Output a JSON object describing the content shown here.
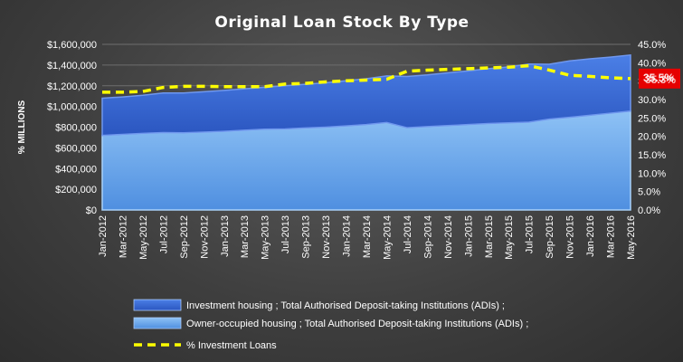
{
  "chart_data": {
    "type": "area",
    "title": "Original  Loan Stock By Type",
    "ylabel": "% MILLIONS",
    "y_left": {
      "ylim": [
        0,
        1600000
      ],
      "step": 200000,
      "tick_labels": [
        "$0",
        "$200,000",
        "$400,000",
        "$600,000",
        "$800,000",
        "$1,000,000",
        "$1,200,000",
        "$1,400,000",
        "$1,600,000"
      ]
    },
    "y_right": {
      "ylim": [
        0,
        45
      ],
      "step": 5,
      "tick_labels": [
        "0.0%",
        "5.0%",
        "10.0%",
        "15.0%",
        "20.0%",
        "25.0%",
        "30.0%",
        "35.0%",
        "40.0%",
        "45.0%"
      ]
    },
    "x_labels": [
      "Jan-2012",
      "Mar-2012",
      "May-2012",
      "Jul-2012",
      "Sep-2012",
      "Nov-2012",
      "Jan-2013",
      "Mar-2013",
      "May-2013",
      "Jul-2013",
      "Sep-2013",
      "Nov-2013",
      "Jan-2014",
      "Mar-2014",
      "May-2014",
      "Jul-2014",
      "Sep-2014",
      "Nov-2014",
      "Jan-2015",
      "Mar-2015",
      "May-2015",
      "Jul-2015",
      "Sep-2015",
      "Nov-2015",
      "Jan-2016",
      "Mar-2016",
      "May-2016"
    ],
    "grid": true,
    "legend_position": "bottom",
    "series": [
      {
        "name": "Owner-occupied housing ;  Total Authorised Deposit-taking Institutions (ADIs) ;",
        "kind": "area",
        "stacked": true,
        "axis": "left",
        "color": "#6fa8ec",
        "values": [
          720000,
          730000,
          740000,
          748000,
          745000,
          752000,
          760000,
          770000,
          780000,
          782000,
          792000,
          800000,
          812000,
          825000,
          845000,
          795000,
          805000,
          815000,
          825000,
          835000,
          842000,
          848000,
          878000,
          895000,
          915000,
          935000,
          955000
        ]
      },
      {
        "name": "Investment housing ;  Total Authorised Deposit-taking Institutions (ADIs) ;",
        "kind": "area",
        "stacked": true,
        "axis": "left",
        "color": "#3c6ad6",
        "values": [
          360000,
          362000,
          368000,
          382000,
          385000,
          390000,
          395000,
          400000,
          406000,
          418000,
          422000,
          428000,
          436000,
          443000,
          450000,
          495000,
          500000,
          510000,
          518000,
          530000,
          540000,
          562000,
          530000,
          545000,
          545000,
          542000,
          542000
        ]
      },
      {
        "name": "% Investment Loans",
        "kind": "line",
        "dashed": true,
        "axis": "right",
        "color": "#ffff00",
        "values": [
          32.0,
          32.0,
          32.2,
          33.3,
          33.6,
          33.6,
          33.5,
          33.5,
          33.5,
          34.2,
          34.4,
          34.8,
          35.1,
          35.3,
          35.5,
          37.7,
          38.0,
          38.2,
          38.4,
          38.6,
          38.8,
          39.2,
          38.0,
          36.6,
          36.3,
          35.9,
          35.7
        ]
      }
    ],
    "end_badges": [
      "35.5%",
      "35.3%"
    ],
    "badge_color": "#e60000"
  }
}
